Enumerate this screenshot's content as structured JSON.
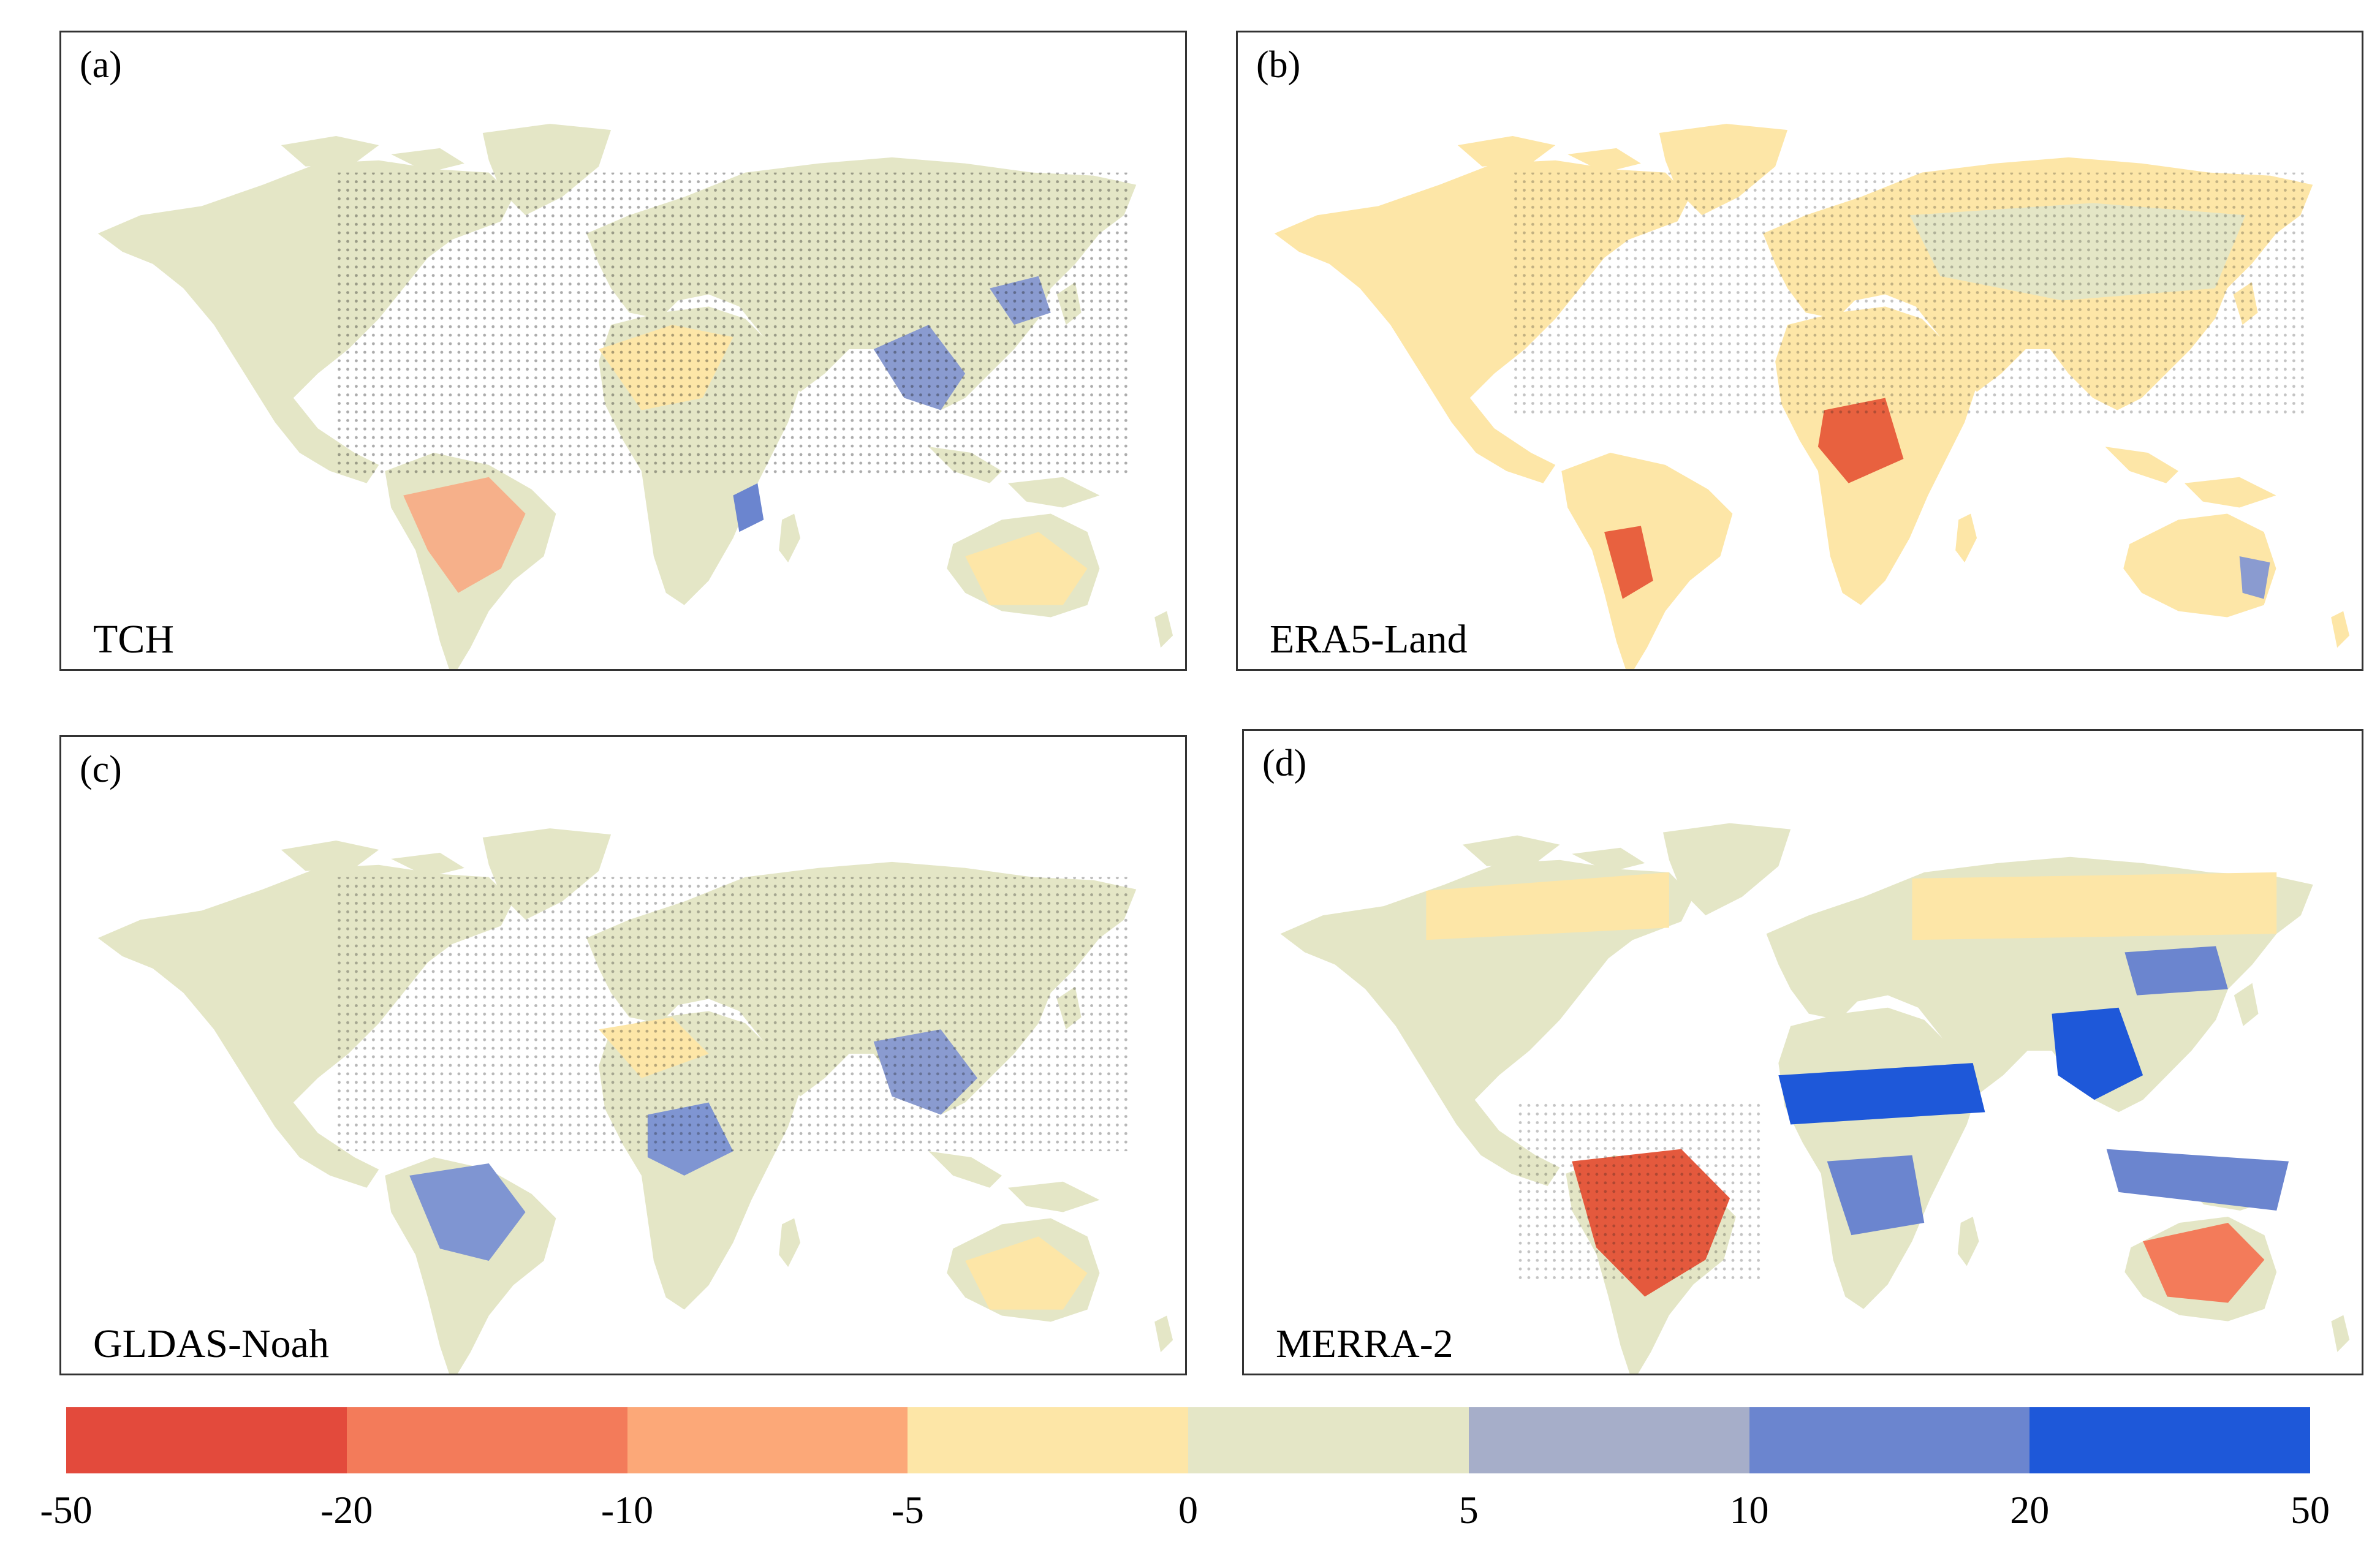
{
  "panels": [
    {
      "id": "a",
      "letter": "(a)",
      "name": "TCH"
    },
    {
      "id": "b",
      "letter": "(b)",
      "name": "ERA5-Land"
    },
    {
      "id": "c",
      "letter": "(c)",
      "name": "GLDAS-Noah"
    },
    {
      "id": "d",
      "letter": "(d)",
      "name": "MERRA-2"
    }
  ],
  "legend": {
    "ticks": [
      "-50",
      "-20",
      "-10",
      "-5",
      "0",
      "5",
      "10",
      "20",
      "50"
    ],
    "colors": [
      "#e34a3c",
      "#f37b5a",
      "#fca878",
      "#fde6a7",
      "#e4e6c6",
      "#a6aec9",
      "#6b85cf",
      "#1e58d9"
    ]
  }
}
